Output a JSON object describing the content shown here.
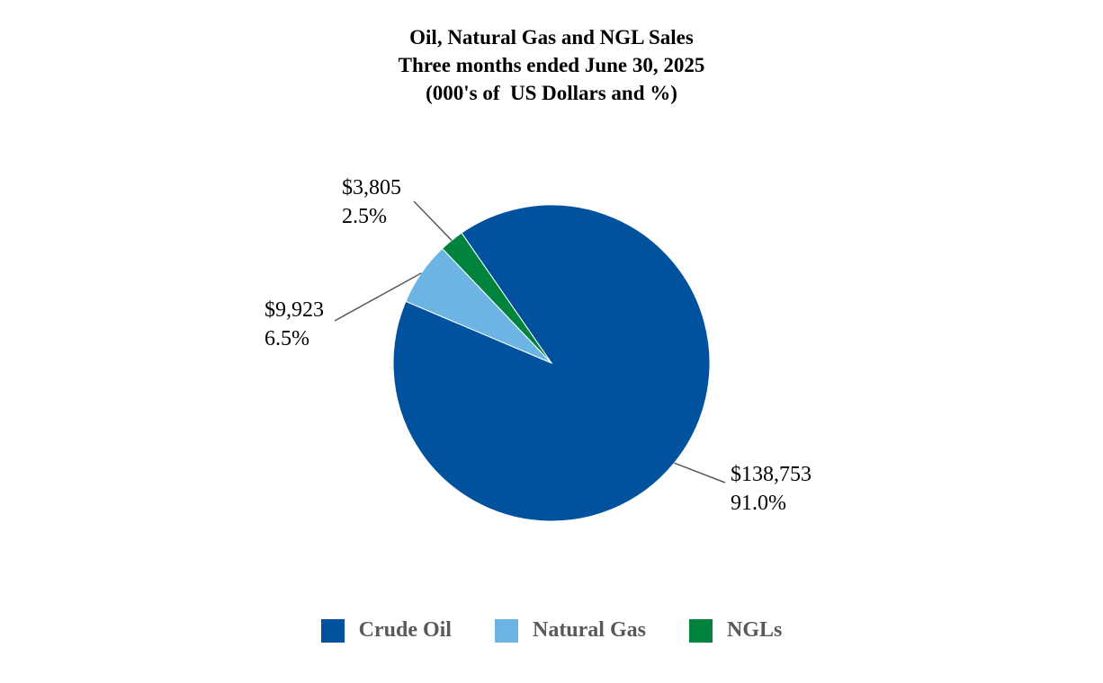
{
  "chart_data": {
    "type": "pie",
    "title": "Oil, Natural Gas and NGL Sales",
    "subtitle": "Three months ended June 30, 2025",
    "unit_line": "(000's of  US Dollars and %)",
    "categories": [
      "Crude Oil",
      "Natural Gas",
      "NGLs"
    ],
    "values": [
      138753,
      9923,
      3805
    ],
    "percent_labels": [
      "91.0%",
      "6.5%",
      "2.5%"
    ],
    "value_labels": [
      "$138,753",
      "$9,923",
      "$3,805"
    ],
    "colors": [
      "#00529f",
      "#6cb4e4",
      "#00843d"
    ],
    "legend_position": "bottom"
  }
}
